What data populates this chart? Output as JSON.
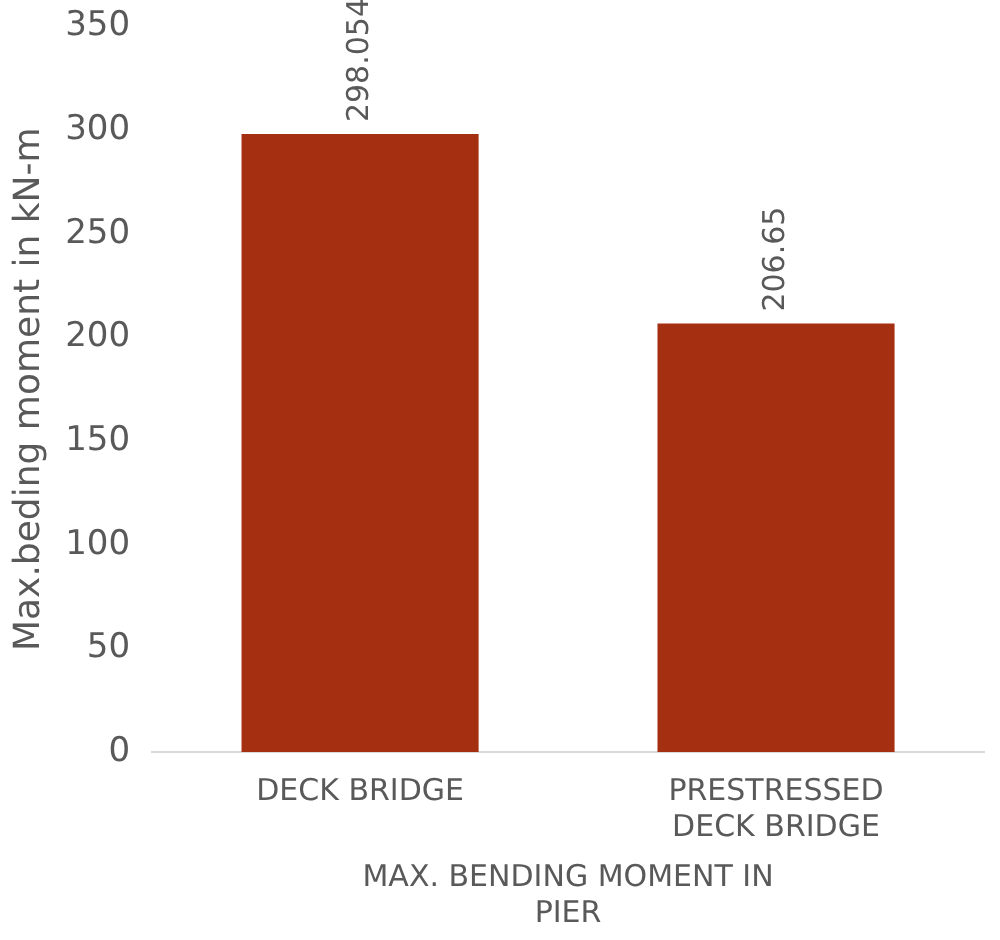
{
  "chart_data": {
    "type": "bar",
    "xlabel": "MAX. BENDING MOMENT IN PIER",
    "ylabel": "Max.beding moment in kN-m",
    "categories": [
      "DECK BRIDGE",
      "PRESTRESSED DECK BRIDGE"
    ],
    "values": [
      298.054,
      206.65
    ],
    "color": "#a52f11",
    "ylim": [
      0,
      350
    ],
    "yticks": [
      0,
      50,
      100,
      150,
      200,
      250,
      300,
      350
    ],
    "grid": false,
    "legend": false,
    "data_labels": true
  }
}
